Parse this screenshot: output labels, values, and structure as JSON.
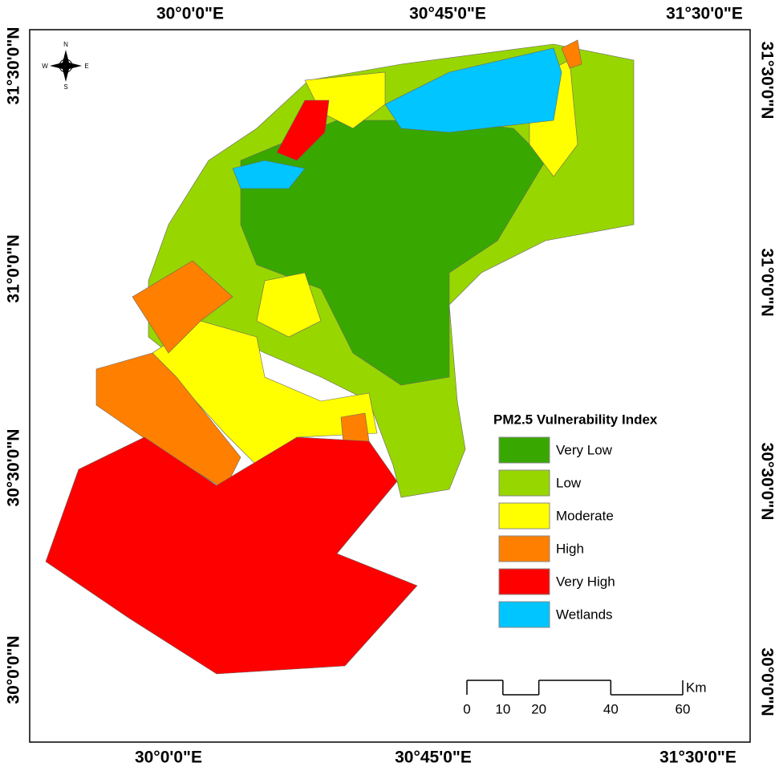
{
  "map": {
    "top_labels": [
      "30°0'0\"E",
      "30°45'0\"E",
      "31°30'0\"E"
    ],
    "bottom_labels": [
      "30°0'0\"E",
      "30°45'0\"E",
      "31°30'0\"E"
    ],
    "left_labels": [
      "31°30'0\"N",
      "31°0'0\"N",
      "30°30'0\"N",
      "30°0'0\"N"
    ],
    "right_labels": [
      "31°30'0\"N",
      "31°0'0\"N",
      "30°30'0\"N",
      "30°0'0\"N"
    ],
    "legend": {
      "title": "PM2.5 Vulnerability Index",
      "items": [
        {
          "label": "Very Low",
          "color": "#38a800"
        },
        {
          "label": "Low",
          "color": "#98d600"
        },
        {
          "label": "Moderate",
          "color": "#ffff00"
        },
        {
          "label": "High",
          "color": "#ff8000"
        },
        {
          "label": "Very High",
          "color": "#ff0000"
        },
        {
          "label": "Wetlands",
          "color": "#00c5ff"
        }
      ]
    },
    "scale_bar": {
      "unit": "Km",
      "ticks": [
        0,
        10,
        20,
        40,
        60
      ]
    },
    "compass": {
      "n": "N",
      "s": "S",
      "e": "E",
      "w": "W"
    }
  }
}
